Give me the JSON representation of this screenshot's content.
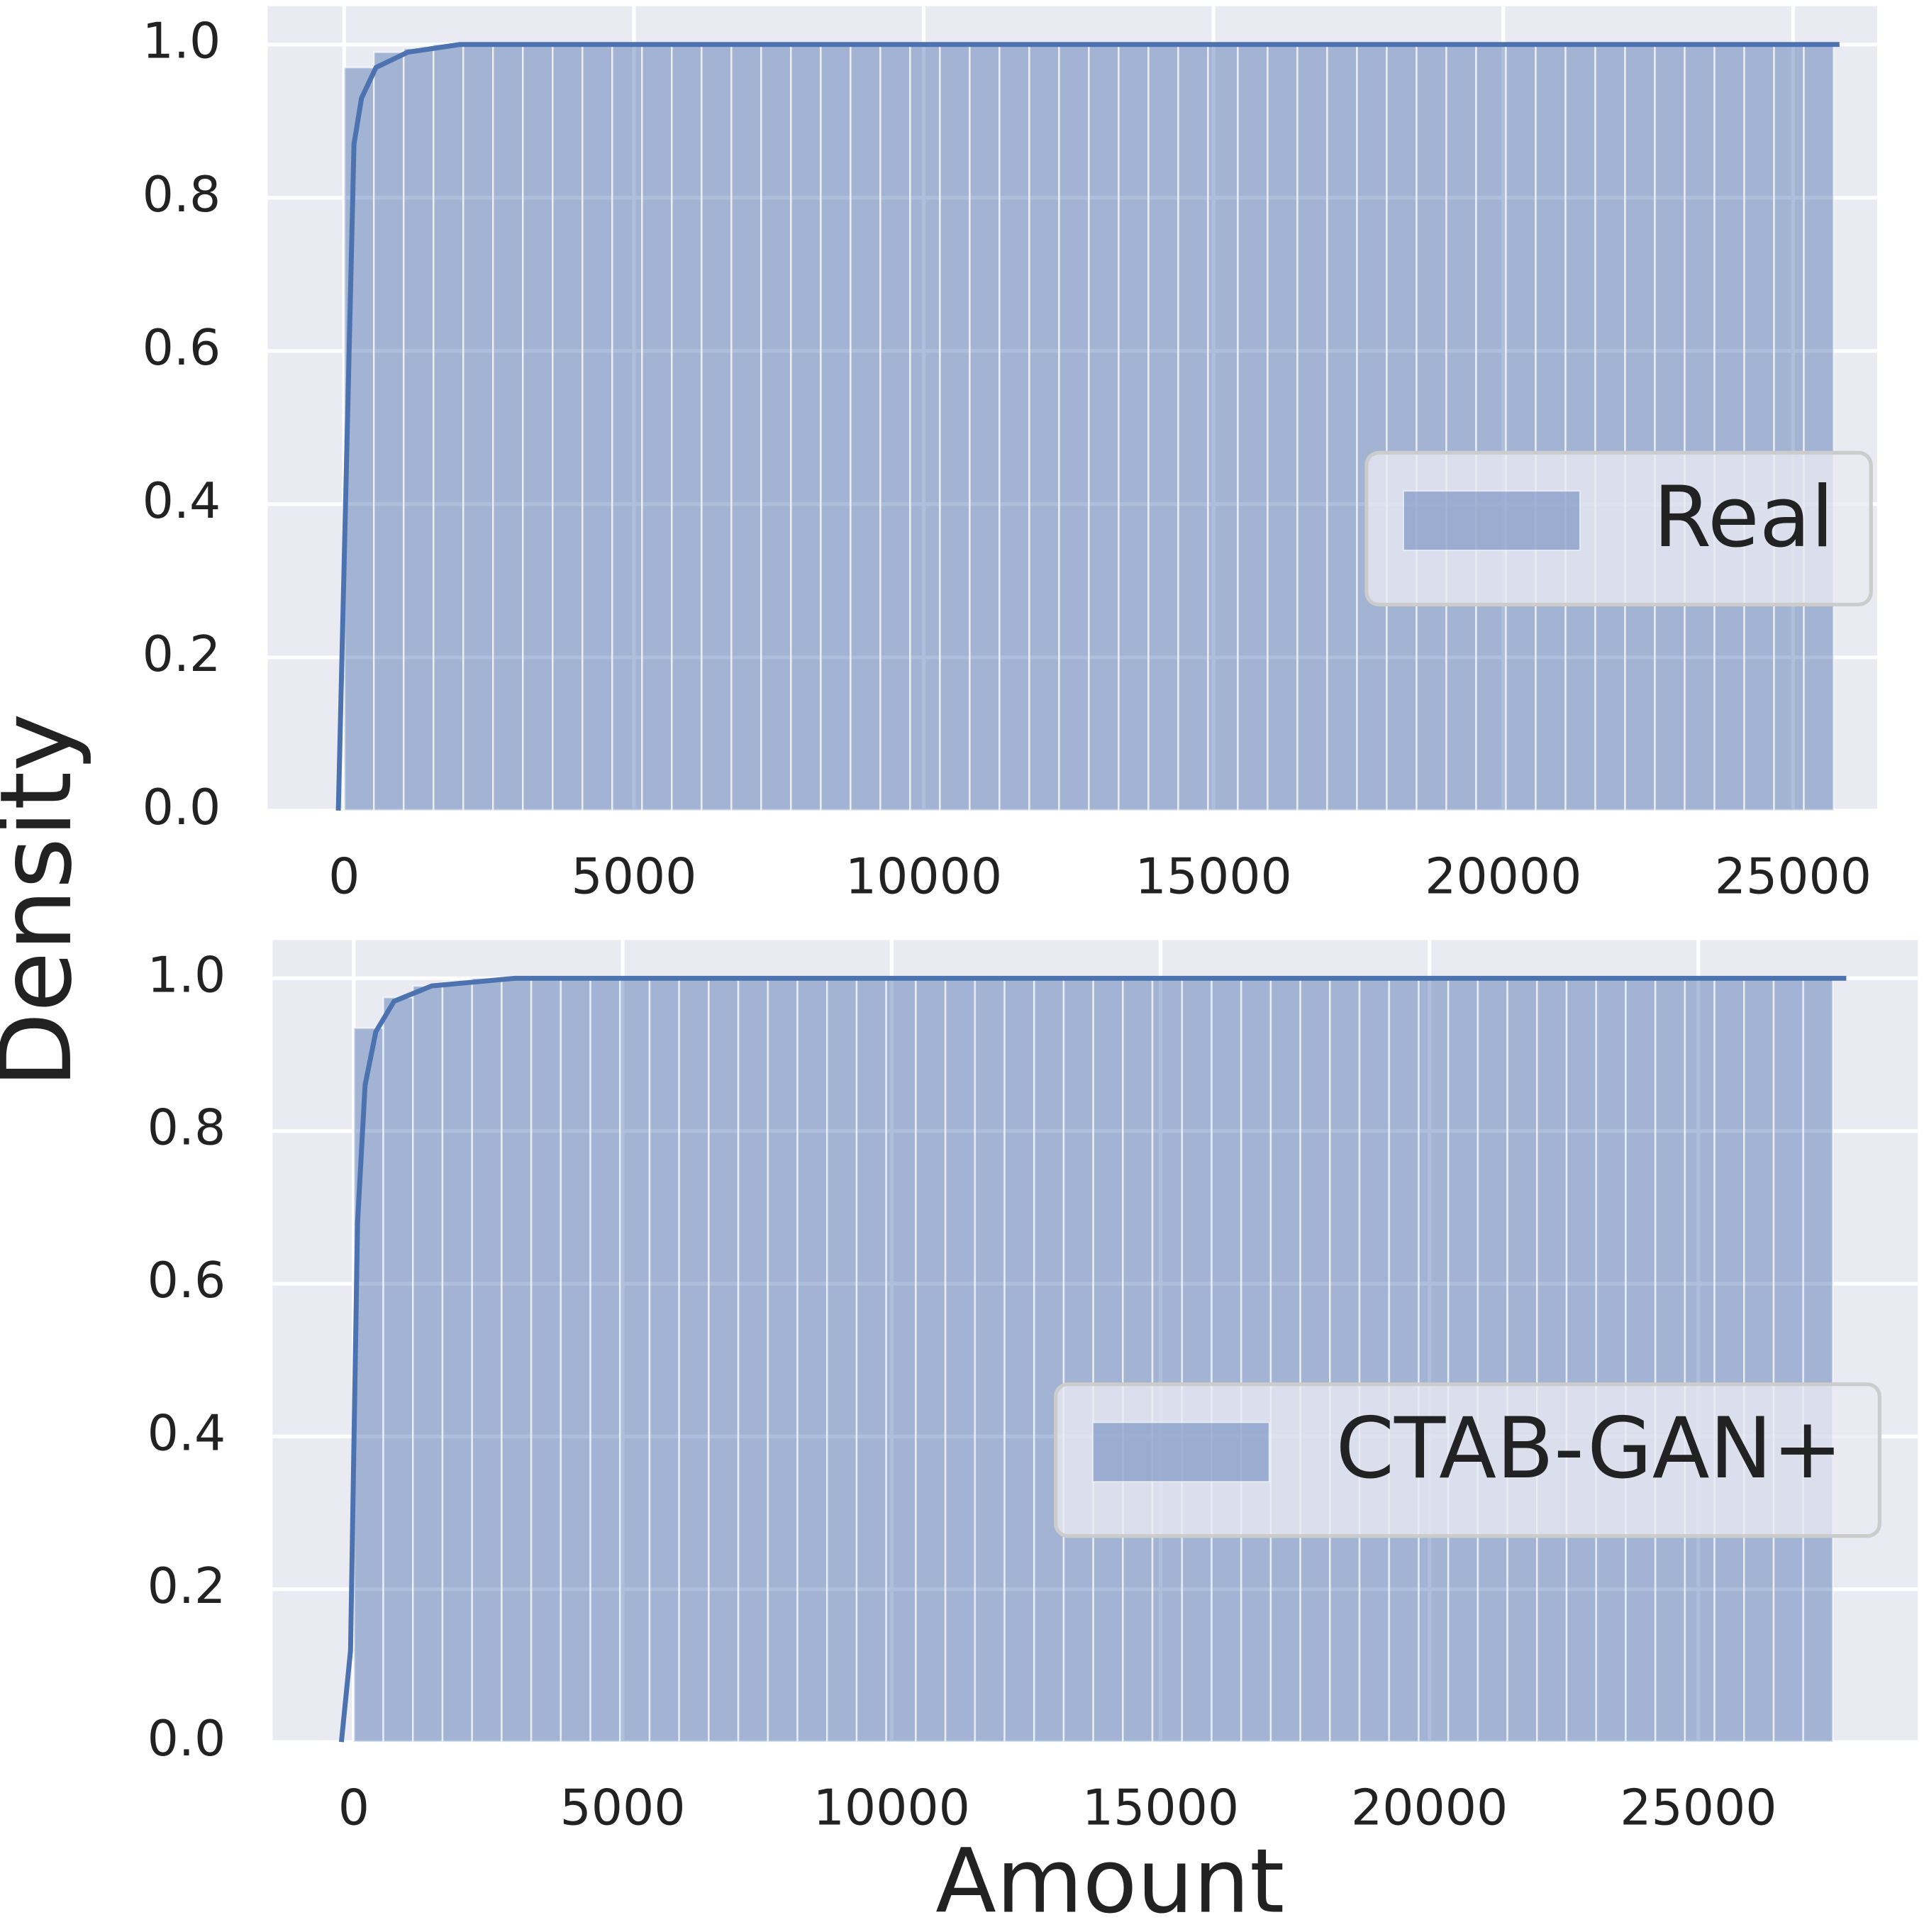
{
  "chart_data": [
    {
      "type": "histogram",
      "name": "Real",
      "color": "#4c72b0",
      "ylabel": "Density",
      "bins": [
        0,
        514,
        1028,
        1542,
        2056,
        2570,
        3084,
        3598,
        4112,
        4626,
        5140,
        5654,
        6168,
        6682,
        7196,
        7710,
        8224,
        8738,
        9252,
        9766,
        10280,
        10794,
        11308,
        11822,
        12336,
        12850,
        13364,
        13878,
        14392,
        14906,
        15420,
        15934,
        16448,
        16962,
        17476,
        17990,
        18504,
        19018,
        19532,
        20046,
        20560,
        21074,
        21588,
        22102,
        22616,
        23130,
        23644,
        24158,
        24672,
        25186,
        25700
      ],
      "values": [
        0.97,
        0.99,
        0.995,
        1,
        1,
        1,
        1,
        1,
        1,
        1,
        1,
        1,
        1,
        1,
        1,
        1,
        1,
        1,
        1,
        1,
        1,
        1,
        1,
        1,
        1,
        1,
        1,
        1,
        1,
        1,
        1,
        1,
        1,
        1,
        1,
        1,
        1,
        1,
        1,
        1,
        1,
        1,
        1,
        1,
        1,
        1,
        1,
        1,
        1,
        1
      ],
      "line": {
        "x": [
          -100,
          170,
          300,
          550,
          1100,
          2000,
          5000,
          25800
        ],
        "y": [
          0,
          0.87,
          0.93,
          0.97,
          0.99,
          1.0,
          1.0,
          1.0
        ]
      },
      "xlim": [
        -1320,
        26450
      ],
      "ylim": [
        0,
        1.05
      ],
      "xticks": [
        0,
        5000,
        10000,
        15000,
        20000,
        25000
      ],
      "yticks": [
        {
          "value": 0,
          "label": "0.0"
        },
        0.2,
        0.4,
        0.6,
        0.8,
        {
          "value": 1,
          "label": "1.0"
        }
      ],
      "grid": true,
      "legend": "right"
    },
    {
      "type": "histogram",
      "name": "CTAB-GAN+",
      "color": "#4c72b0",
      "xlabel": "Amount",
      "bins": [
        0,
        550,
        1100,
        1650,
        2200,
        2750,
        3300,
        3850,
        4400,
        4950,
        5500,
        6050,
        6600,
        7150,
        7700,
        8250,
        8800,
        9350,
        9900,
        10450,
        11000,
        11550,
        12100,
        12650,
        13200,
        13750,
        14300,
        14850,
        15400,
        15950,
        16500,
        17050,
        17600,
        18150,
        18700,
        19250,
        19800,
        20350,
        20900,
        21450,
        22000,
        22550,
        23100,
        23650,
        24200,
        24750,
        25300,
        25850,
        26400,
        26950,
        27500
      ],
      "values": [
        0.935,
        0.975,
        0.99,
        0.995,
        1,
        1,
        1,
        1,
        1,
        1,
        1,
        1,
        1,
        1,
        1,
        1,
        1,
        1,
        1,
        1,
        1,
        1,
        1,
        1,
        1,
        1,
        1,
        1,
        1,
        1,
        1,
        1,
        1,
        1,
        1,
        1,
        1,
        1,
        1,
        1,
        1,
        1,
        1,
        1,
        1,
        1,
        1,
        1,
        1,
        1
      ],
      "line": {
        "x": [
          -230,
          -60,
          70,
          210,
          410,
          750,
          1450,
          3000,
          27750
        ],
        "y": [
          0,
          0.12,
          0.68,
          0.86,
          0.93,
          0.97,
          0.99,
          1.0,
          1.0
        ]
      },
      "xlim": [
        -1510,
        29080
      ],
      "ylim": [
        0,
        1.05
      ],
      "xticks": [
        0,
        5000,
        10000,
        15000,
        20000,
        25000
      ],
      "yticks": [
        {
          "value": 0,
          "label": "0.0"
        },
        0.2,
        0.4,
        0.6,
        0.8,
        {
          "value": 1,
          "label": "1.0"
        }
      ],
      "grid": true,
      "legend": "right"
    }
  ]
}
